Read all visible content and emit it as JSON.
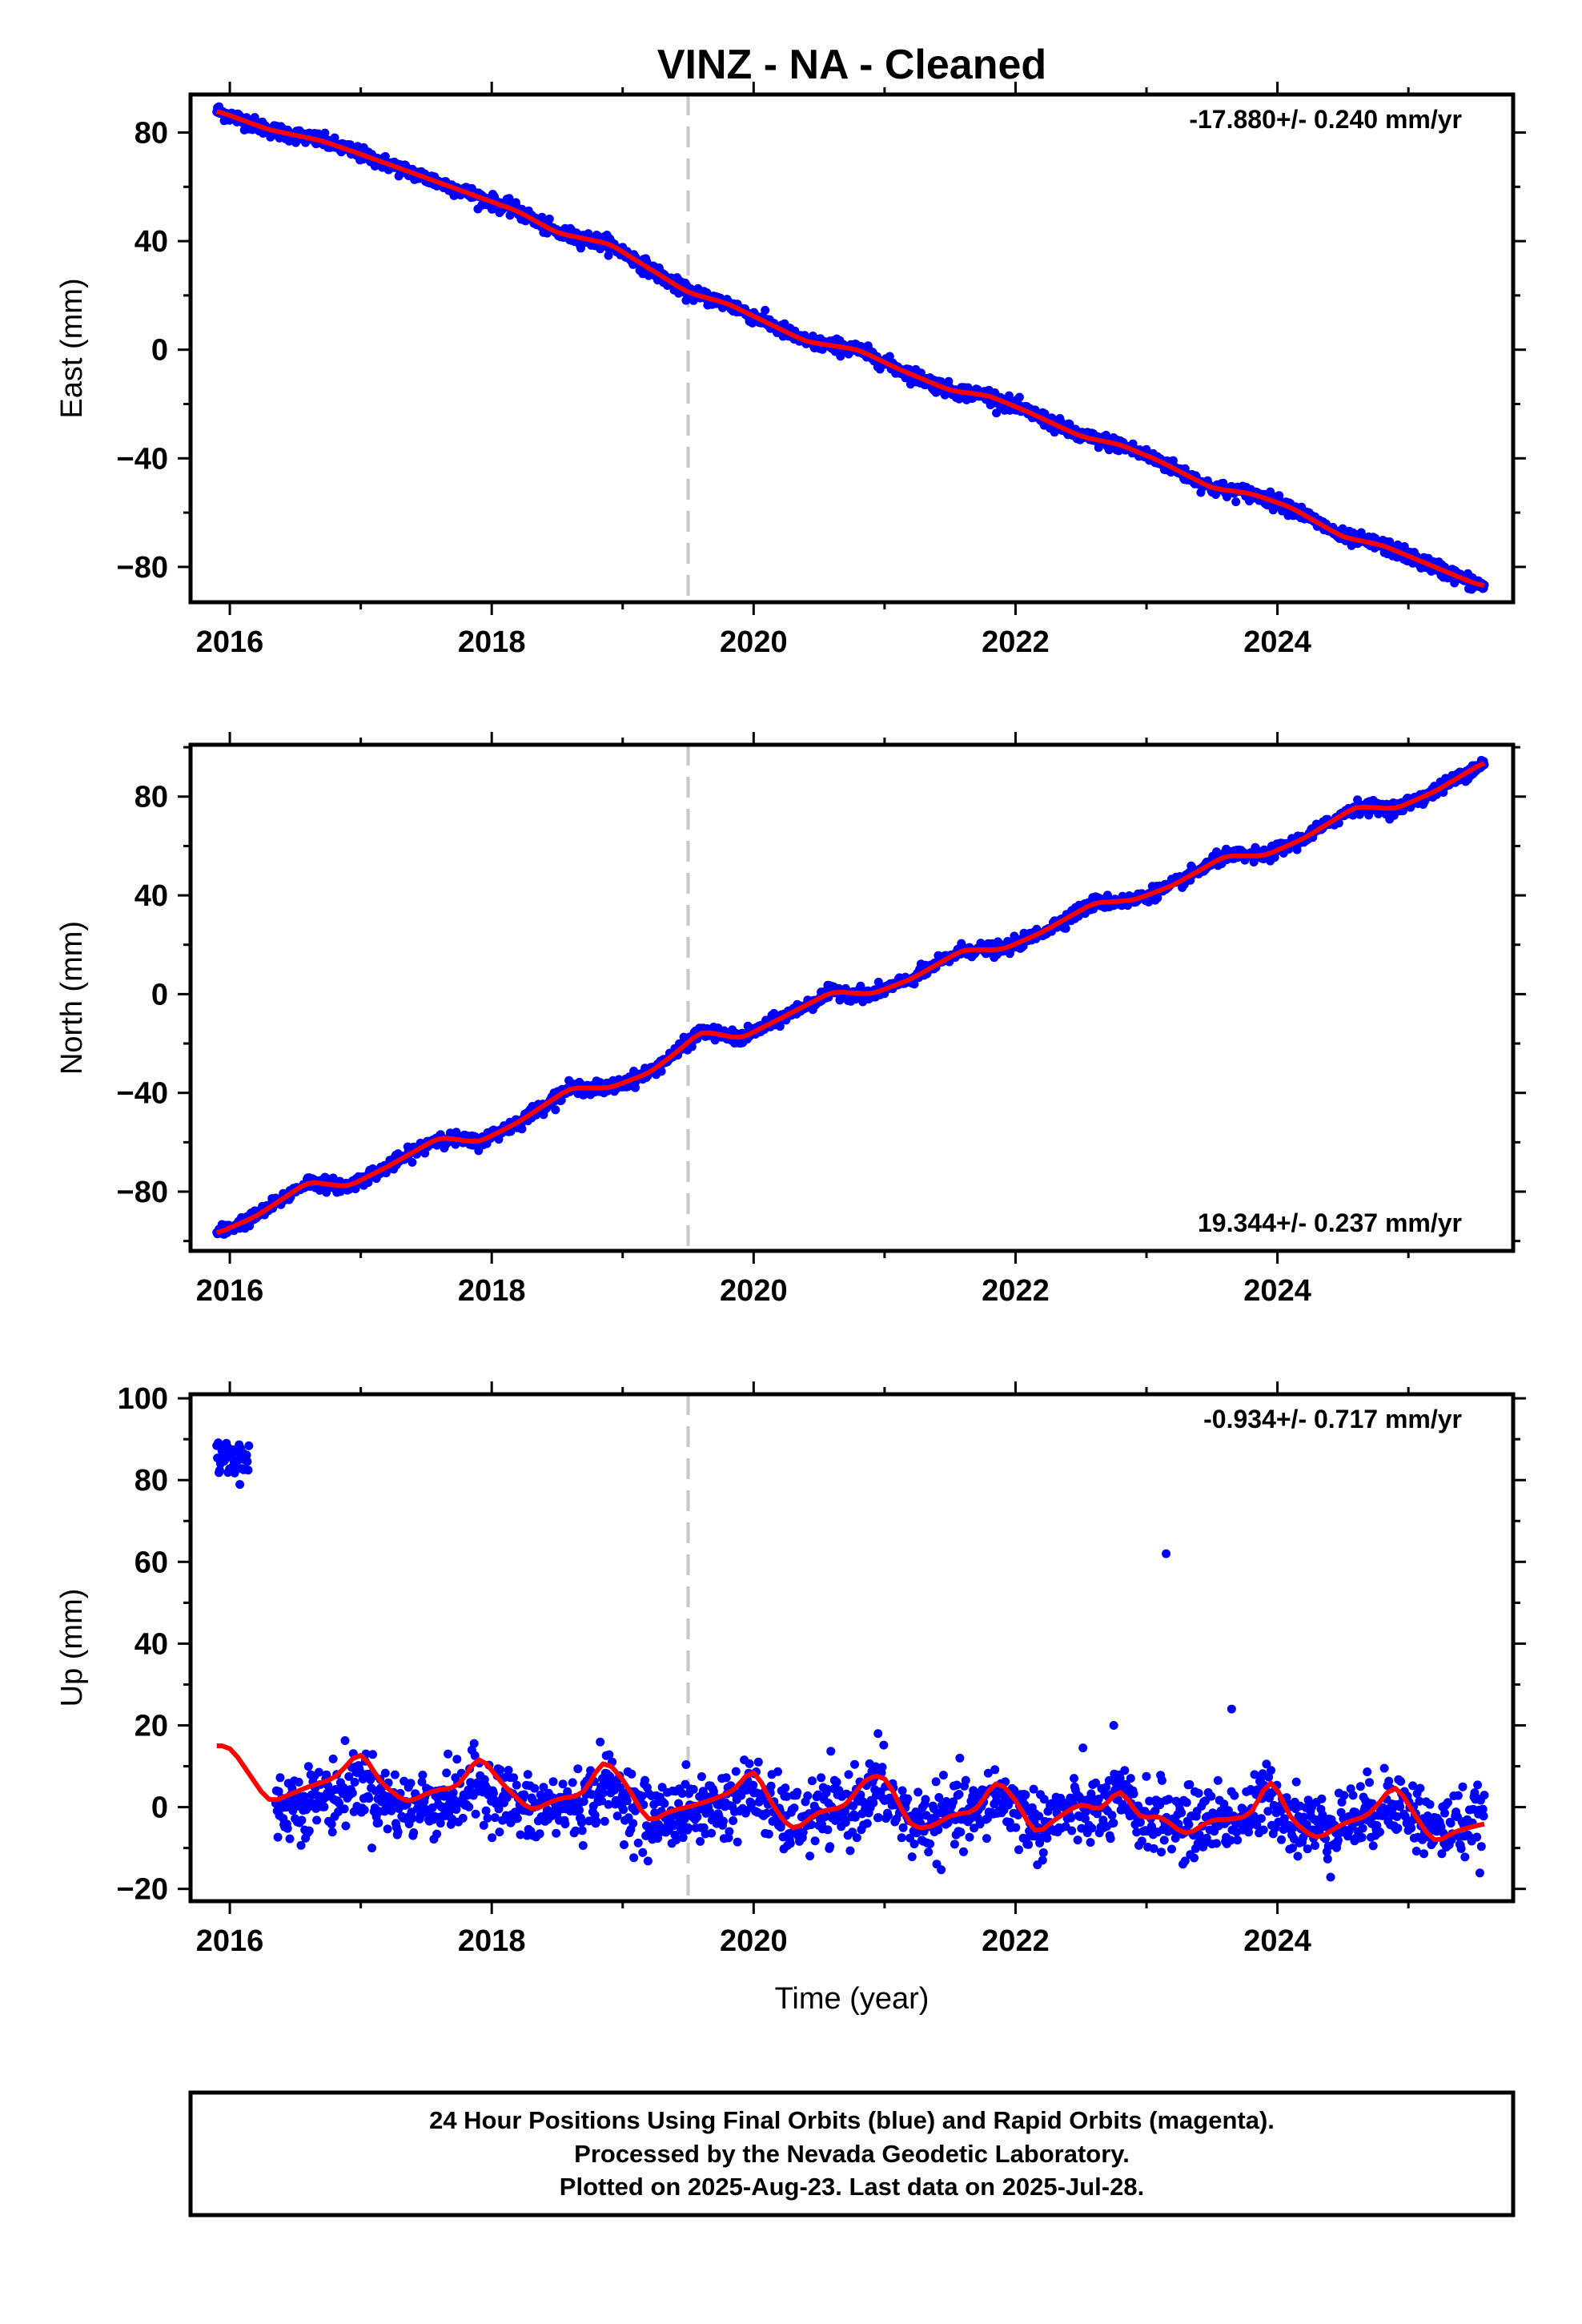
{
  "title": "VINZ  - NA - Cleaned",
  "x_label": "Time (year)",
  "footer": [
    "24 Hour Positions Using Final Orbits (blue) and Rapid Orbits (magenta).",
    "Processed by the Nevada Geodetic Laboratory.",
    "Plotted on 2025-Aug-23. Last data on 2025-Jul-28."
  ],
  "colors": {
    "points": "#0000ff",
    "fit": "#ff0000",
    "dashed": "#c8c8c8",
    "frame": "#000000"
  },
  "chart_data": [
    {
      "type": "scatter",
      "component": "east",
      "ylabel": "East (mm)",
      "rate": "-17.880+/- 0.240 mm/yr",
      "xlim": [
        2015.7,
        2025.8
      ],
      "ylim": [
        -93,
        94
      ],
      "xticks": [
        2016,
        2018,
        2020,
        2022,
        2024
      ],
      "xtick_labels": [
        "2016",
        "2018",
        "2020",
        "2022",
        "2024"
      ],
      "yticks": [
        -80,
        -40,
        0,
        40,
        80
      ],
      "ytick_labels": [
        "−80",
        "−40",
        "0",
        "40",
        "80"
      ],
      "dashed_x": 2019.5,
      "fit_x": [
        2015.9,
        2016.3,
        2016.7,
        2017.0,
        2017.4,
        2017.8,
        2018.2,
        2018.5,
        2018.9,
        2019.2,
        2019.5,
        2019.8,
        2020.1,
        2020.4,
        2020.8,
        2021.1,
        2021.5,
        2021.8,
        2022.1,
        2022.5,
        2022.8,
        2023.1,
        2023.5,
        2023.8,
        2024.1,
        2024.5,
        2024.8,
        2025.1,
        2025.5,
        2025.58
      ],
      "fit_y": [
        88,
        81,
        77,
        72,
        65,
        58,
        51,
        43,
        39,
        30,
        21,
        17,
        10,
        3,
        0,
        -7,
        -15,
        -17,
        -23,
        -32,
        -35,
        -41,
        -51,
        -53,
        -58,
        -69,
        -72,
        -78,
        -86,
        -87
      ]
    },
    {
      "type": "scatter",
      "component": "north",
      "ylabel": "North (mm)",
      "rate": "19.344+/- 0.237 mm/yr",
      "xlim": [
        2015.7,
        2025.8
      ],
      "ylim": [
        -104,
        101
      ],
      "xticks": [
        2016,
        2018,
        2020,
        2022,
        2024
      ],
      "xtick_labels": [
        "2016",
        "2018",
        "2020",
        "2022",
        "2024"
      ],
      "yticks": [
        -80,
        -40,
        0,
        40,
        80
      ],
      "ytick_labels": [
        "−80",
        "−40",
        "0",
        "40",
        "80"
      ],
      "dashed_x": 2019.5,
      "fit_x": [
        2015.9,
        2016.2,
        2016.6,
        2016.9,
        2017.2,
        2017.6,
        2017.9,
        2018.2,
        2018.6,
        2018.9,
        2019.2,
        2019.4,
        2019.6,
        2019.9,
        2020.2,
        2020.6,
        2020.9,
        2021.2,
        2021.6,
        2021.9,
        2022.2,
        2022.6,
        2022.9,
        2023.2,
        2023.6,
        2023.9,
        2024.2,
        2024.6,
        2024.9,
        2025.2,
        2025.58
      ],
      "fit_y": [
        -97,
        -90,
        -76,
        -78,
        -70,
        -58,
        -60,
        -52,
        -38,
        -38,
        -32,
        -24,
        -15,
        -18,
        -10,
        1,
        0,
        6,
        18,
        18,
        25,
        37,
        38,
        44,
        56,
        56,
        63,
        76,
        75,
        82,
        94
      ]
    },
    {
      "type": "scatter",
      "component": "up",
      "ylabel": "Up (mm)",
      "rate": "-0.934+/- 0.717 mm/yr",
      "xlim": [
        2015.7,
        2025.8
      ],
      "ylim": [
        -23,
        101
      ],
      "xticks": [
        2016,
        2018,
        2020,
        2022,
        2024
      ],
      "xtick_labels": [
        "2016",
        "2018",
        "2020",
        "2022",
        "2024"
      ],
      "yticks": [
        -20,
        0,
        20,
        40,
        60,
        80,
        100
      ],
      "ytick_labels": [
        "−20",
        "0",
        "20",
        "40",
        "60",
        "80",
        "100"
      ],
      "dashed_x": 2019.5,
      "outliers": [
        [
          2023.15,
          62
        ],
        [
          2023.65,
          24
        ],
        [
          2020.95,
          18
        ],
        [
          2022.75,
          20
        ]
      ],
      "fit_x": [
        2015.9,
        2016.0,
        2016.15,
        2016.3,
        2016.45,
        2016.6,
        2016.8,
        2017.0,
        2017.15,
        2017.35,
        2017.55,
        2017.75,
        2017.9,
        2018.1,
        2018.3,
        2018.5,
        2018.7,
        2018.85,
        2019.0,
        2019.2,
        2019.35,
        2019.5,
        2019.7,
        2019.85,
        2020.0,
        2020.15,
        2020.3,
        2020.5,
        2020.7,
        2020.85,
        2021.0,
        2021.2,
        2021.35,
        2021.5,
        2021.7,
        2021.85,
        2022.0,
        2022.15,
        2022.3,
        2022.5,
        2022.65,
        2022.8,
        2022.95,
        2023.1,
        2023.3,
        2023.5,
        2023.65,
        2023.8,
        2023.95,
        2024.1,
        2024.3,
        2024.5,
        2024.7,
        2024.9,
        2025.05,
        2025.2,
        2025.35,
        2025.58
      ],
      "fit_y": [
        15,
        15,
        8,
        1,
        3,
        5,
        7,
        14,
        6,
        1,
        4,
        5,
        13,
        5,
        -1,
        2,
        3,
        12,
        7,
        -4,
        -1,
        0,
        2,
        4,
        10,
        0,
        -6,
        -1,
        0,
        7,
        8,
        -5,
        -5,
        -2,
        -1,
        7,
        2,
        -7,
        -3,
        1,
        -1,
        5,
        -3,
        -2,
        -7,
        -3,
        -3,
        -2,
        8,
        -3,
        -8,
        -4,
        -2,
        6,
        -2,
        -9,
        -6,
        -4
      ]
    }
  ]
}
